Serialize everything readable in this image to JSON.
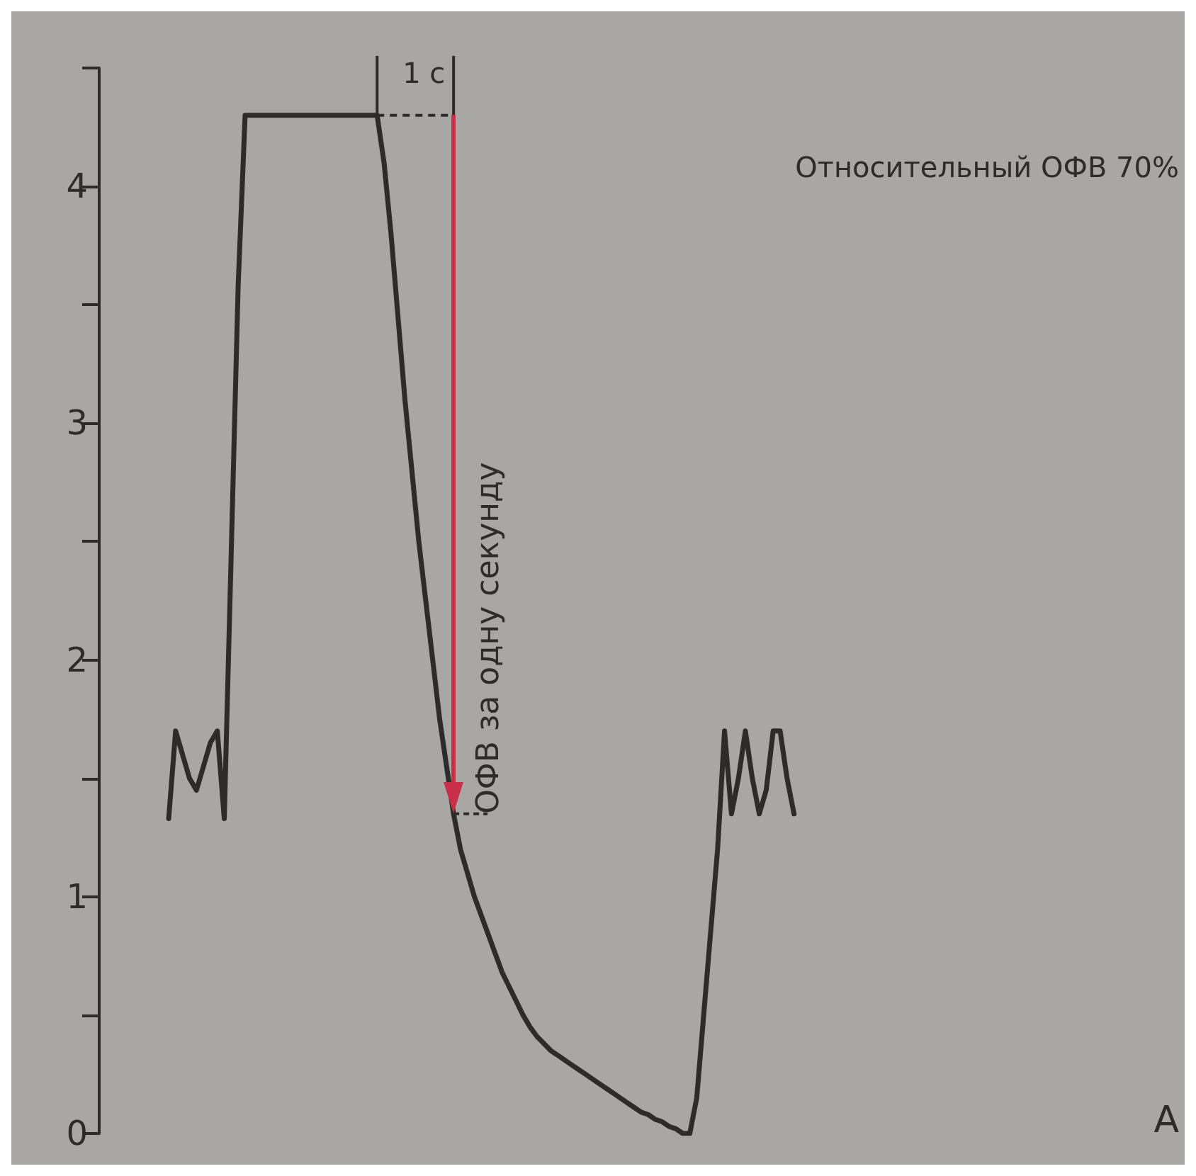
{
  "chart_data": {
    "type": "line",
    "categories": [
      null,
      null,
      null,
      null,
      null,
      null,
      null,
      null,
      null,
      null,
      null,
      null,
      null,
      null,
      null,
      null,
      null,
      null,
      null,
      null,
      null,
      null,
      null,
      null,
      null,
      null,
      null,
      null,
      null,
      null,
      null,
      null,
      null,
      null,
      null,
      null,
      null,
      null,
      null,
      null,
      null,
      null,
      null,
      null,
      null,
      null,
      null,
      null,
      null,
      null,
      null,
      null,
      null,
      null,
      null,
      null,
      null,
      null,
      null,
      null,
      null,
      null,
      null,
      null,
      null,
      null,
      null,
      null,
      null,
      null,
      null,
      null,
      null,
      null,
      null,
      null,
      null,
      null,
      null,
      null,
      null,
      null,
      null,
      null,
      null,
      null,
      null,
      null,
      null,
      null,
      null,
      null,
      null,
      null,
      null,
      null,
      null,
      null,
      null,
      null,
      null,
      null,
      null,
      null,
      null,
      null,
      null,
      null,
      null,
      null,
      null,
      null,
      null,
      null,
      null,
      null,
      null,
      null,
      null,
      null,
      null,
      null,
      null,
      null,
      null,
      null,
      null,
      null,
      null,
      null,
      null,
      null,
      null,
      null,
      null,
      null,
      null,
      null,
      null,
      null,
      null,
      null,
      null,
      null,
      null,
      null,
      null,
      null,
      null,
      null,
      null,
      null,
      null,
      null,
      null,
      null
    ],
    "series": [
      {
        "color": "#2e2c2b",
        "values": [
          null,
          null,
          null,
          null,
          null,
          null,
          null,
          null,
          null,
          null,
          1.33,
          1.7,
          1.6,
          1.5,
          1.45,
          1.55,
          1.65,
          1.7,
          1.33,
          2.45,
          3.58,
          4.3,
          4.3,
          4.3,
          4.3,
          4.3,
          4.3,
          4.3,
          4.3,
          4.3,
          4.3,
          4.3,
          4.3,
          4.3,
          4.3,
          4.3,
          4.3,
          4.3,
          4.3,
          4.3,
          4.3,
          4.1,
          3.8,
          3.45,
          3.1,
          2.8,
          2.5,
          2.25,
          2.0,
          1.75,
          1.55,
          1.35,
          1.2,
          1.1,
          1.0,
          0.92,
          0.84,
          0.76,
          0.68,
          0.62,
          0.56,
          0.5,
          0.45,
          0.41,
          0.38,
          0.35,
          0.33,
          0.31,
          0.29,
          0.27,
          0.25,
          0.23,
          0.21,
          0.19,
          0.17,
          0.15,
          0.13,
          0.11,
          0.09,
          0.08,
          0.06,
          0.05,
          0.03,
          0.02,
          0.0,
          0.0,
          0.15,
          0.5,
          0.85,
          1.2,
          1.7,
          1.35,
          1.5,
          1.7,
          1.5,
          1.35,
          1.45,
          1.7,
          1.7,
          1.5,
          1.35,
          null,
          null,
          null,
          null,
          null,
          null,
          null,
          null,
          null,
          null,
          null,
          null,
          null,
          null,
          null,
          null,
          null,
          null,
          null,
          null,
          null,
          null,
          null,
          null,
          null,
          null,
          null,
          null,
          null,
          null,
          null,
          null,
          null,
          null,
          null,
          null,
          null,
          null,
          null,
          null,
          null,
          null,
          null,
          null,
          null,
          null,
          null,
          null,
          null,
          null,
          null,
          null,
          null,
          null,
          null
        ]
      }
    ],
    "ylim": [
      0,
      4.5
    ],
    "yticks": [
      0,
      {
        "value": 0.5,
        "label": null
      },
      1,
      {
        "value": 1.5,
        "label": null
      },
      2,
      {
        "value": 2.5,
        "label": null
      },
      3,
      {
        "value": 3.5,
        "label": null
      },
      4,
      {
        "value": 4.5,
        "label": null
      }
    ],
    "tick_labels": "y",
    "grid": false,
    "line_style": "solid",
    "annotations": [
      "Относительный ОФВ 70%",
      "1 с",
      "ОФВ за одну секунду",
      "А"
    ]
  }
}
